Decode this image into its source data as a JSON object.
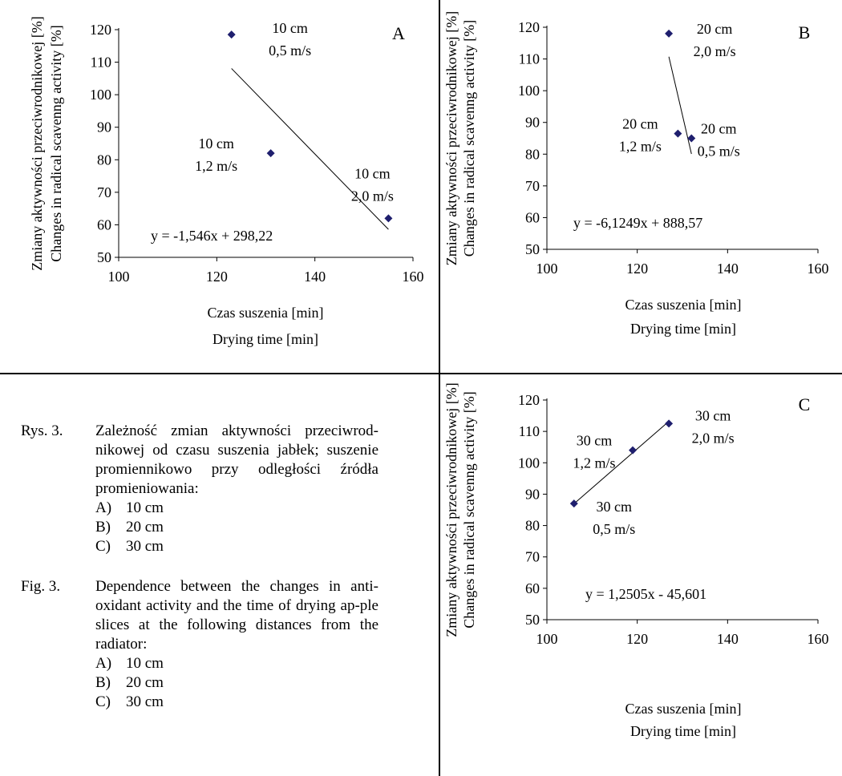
{
  "charts": [
    {
      "panel": "A",
      "type": "scatter",
      "ylabel_pl": "Zmiany aktywności przeciwrodnikowej [%]",
      "ylabel_en": "Changes in radical scavenng activity [%]",
      "xlabel_pl": "Czas suszenia [min]",
      "xlabel_en": "Drying time [min]",
      "xlim": [
        100,
        160
      ],
      "ylim": [
        50,
        120
      ],
      "x_ticks": [
        100,
        120,
        140,
        160
      ],
      "y_ticks": [
        50,
        60,
        70,
        80,
        90,
        100,
        110,
        120
      ],
      "points": [
        {
          "x": 123,
          "y": 118.5,
          "label1": "10 cm",
          "label2": "0,5 m/s"
        },
        {
          "x": 131,
          "y": 82,
          "label1": "10 cm",
          "label2": "1,2 m/s"
        },
        {
          "x": 155,
          "y": 62,
          "label1": "10 cm",
          "label2": "2,0 m/s"
        }
      ],
      "trendline": {
        "slope": -1.546,
        "intercept": 298.22,
        "x_range": [
          123,
          155
        ]
      },
      "equation": "y = -1,546x + 298,22"
    },
    {
      "panel": "B",
      "type": "scatter",
      "ylabel_pl": "Zmiany aktywności przeciwrodnikowej [%]",
      "ylabel_en": "Changes in radical scavenng activity [%]",
      "xlabel_pl": "Czas suszenia [min]",
      "xlabel_en": "Drying time [min]",
      "xlim": [
        100,
        160
      ],
      "ylim": [
        50,
        120
      ],
      "x_ticks": [
        100,
        120,
        140,
        160
      ],
      "y_ticks": [
        50,
        60,
        70,
        80,
        90,
        100,
        110,
        120
      ],
      "points": [
        {
          "x": 127,
          "y": 118,
          "label1": "20 cm",
          "label2": "2,0 m/s"
        },
        {
          "x": 129,
          "y": 86.5,
          "label1": "20 cm",
          "label2": "1,2 m/s"
        },
        {
          "x": 132,
          "y": 85,
          "label1": "20 cm",
          "label2": "0,5 m/s"
        }
      ],
      "trendline": {
        "slope": -6.1249,
        "intercept": 888.57,
        "x_range": [
          127,
          132
        ]
      },
      "equation": "y = -6,1249x + 888,57"
    },
    {
      "panel": "C",
      "type": "scatter",
      "ylabel_pl": "Zmiany aktywności przeciwrodnikowej [%]",
      "ylabel_en": "Changes in radical scavenng activity [%]",
      "xlabel_pl": "Czas suszenia [min]",
      "xlabel_en": "Drying time [min]",
      "xlim": [
        100,
        160
      ],
      "ylim": [
        50,
        120
      ],
      "x_ticks": [
        100,
        120,
        140,
        160
      ],
      "y_ticks": [
        50,
        60,
        70,
        80,
        90,
        100,
        110,
        120
      ],
      "points": [
        {
          "x": 106,
          "y": 87,
          "label1": "30 cm",
          "label2": "0,5 m/s"
        },
        {
          "x": 119,
          "y": 104,
          "label1": "30 cm",
          "label2": "1,2 m/s"
        },
        {
          "x": 127,
          "y": 112.5,
          "label1": "30 cm",
          "label2": "2,0 m/s"
        }
      ],
      "trendline": {
        "slope": 1.2505,
        "intercept": -45.601,
        "x_range": [
          106,
          127
        ]
      },
      "equation": "y = 1,2505x - 45,601"
    }
  ],
  "chart_data": [
    {
      "type": "scatter",
      "panel": "A",
      "x": [
        123,
        131,
        155
      ],
      "y": [
        118.5,
        82,
        62
      ],
      "xlabel": "Czas suszenia [min] / Drying time [min]",
      "ylabel": "Zmiany aktywności przeciwrodnikowej [%] / Changes in radical scavenng activity [%]",
      "xlim": [
        100,
        160
      ],
      "ylim": [
        50,
        120
      ],
      "trendline": "y = -1,546x + 298,22"
    },
    {
      "type": "scatter",
      "panel": "B",
      "x": [
        127,
        129,
        132
      ],
      "y": [
        118,
        86.5,
        85
      ],
      "xlabel": "Czas suszenia [min] / Drying time [min]",
      "ylabel": "Zmiany aktywności przeciwrodnikowej [%] / Changes in radical scavenng activity [%]",
      "xlim": [
        100,
        160
      ],
      "ylim": [
        50,
        120
      ],
      "trendline": "y = -6,1249x + 888,57"
    },
    {
      "type": "scatter",
      "panel": "C",
      "x": [
        106,
        119,
        127
      ],
      "y": [
        87,
        104,
        112.5
      ],
      "xlabel": "Czas suszenia [min] / Drying time [min]",
      "ylabel": "Zmiany aktywności przeciwrodnikowej [%] / Changes in radical scavenng activity [%]",
      "xlim": [
        100,
        160
      ],
      "ylim": [
        50,
        120
      ],
      "trendline": "y = 1,2505x - 45,601"
    }
  ],
  "caption": {
    "pl_num": "Rys. 3.",
    "pl_text": "Zależność zmian aktywności przeciwrod-nikowej od czasu suszenia jabłek; suszenie promiennikowo przy odległości źródła promieniowania:",
    "en_num": "Fig. 3.",
    "en_text": "Dependence between the changes in anti-oxidant activity and the time of drying ap-ple slices at the following distances from the radiator:",
    "items": [
      {
        "key": "A)",
        "value": "10 cm"
      },
      {
        "key": "B)",
        "value": "20 cm"
      },
      {
        "key": "C)",
        "value": "30 cm"
      }
    ]
  },
  "colors": {
    "marker": "#1f1f6e",
    "line": "#000000"
  }
}
